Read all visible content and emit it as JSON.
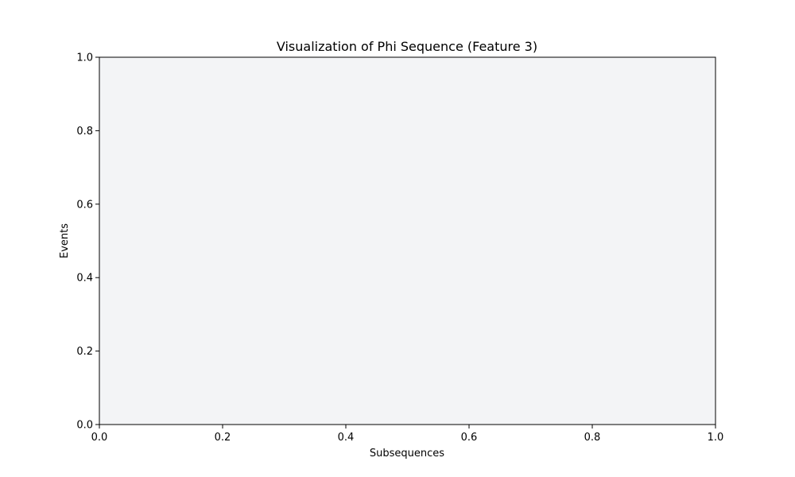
{
  "chart_data": {
    "type": "scatter",
    "title": "Visualization of Phi Sequence (Feature 3)",
    "xlabel": "Subsequences",
    "ylabel": "Events",
    "xlim": [
      0.0,
      1.0
    ],
    "ylim": [
      0.0,
      1.0
    ],
    "xticks": [
      "0.0",
      "0.2",
      "0.4",
      "0.6",
      "0.8",
      "1.0"
    ],
    "yticks": [
      "0.0",
      "0.2",
      "0.4",
      "0.6",
      "0.8",
      "1.0"
    ],
    "grid": false,
    "series": [],
    "colors": {
      "plot_background": "#f3f4f6",
      "axes": "#000000"
    }
  }
}
